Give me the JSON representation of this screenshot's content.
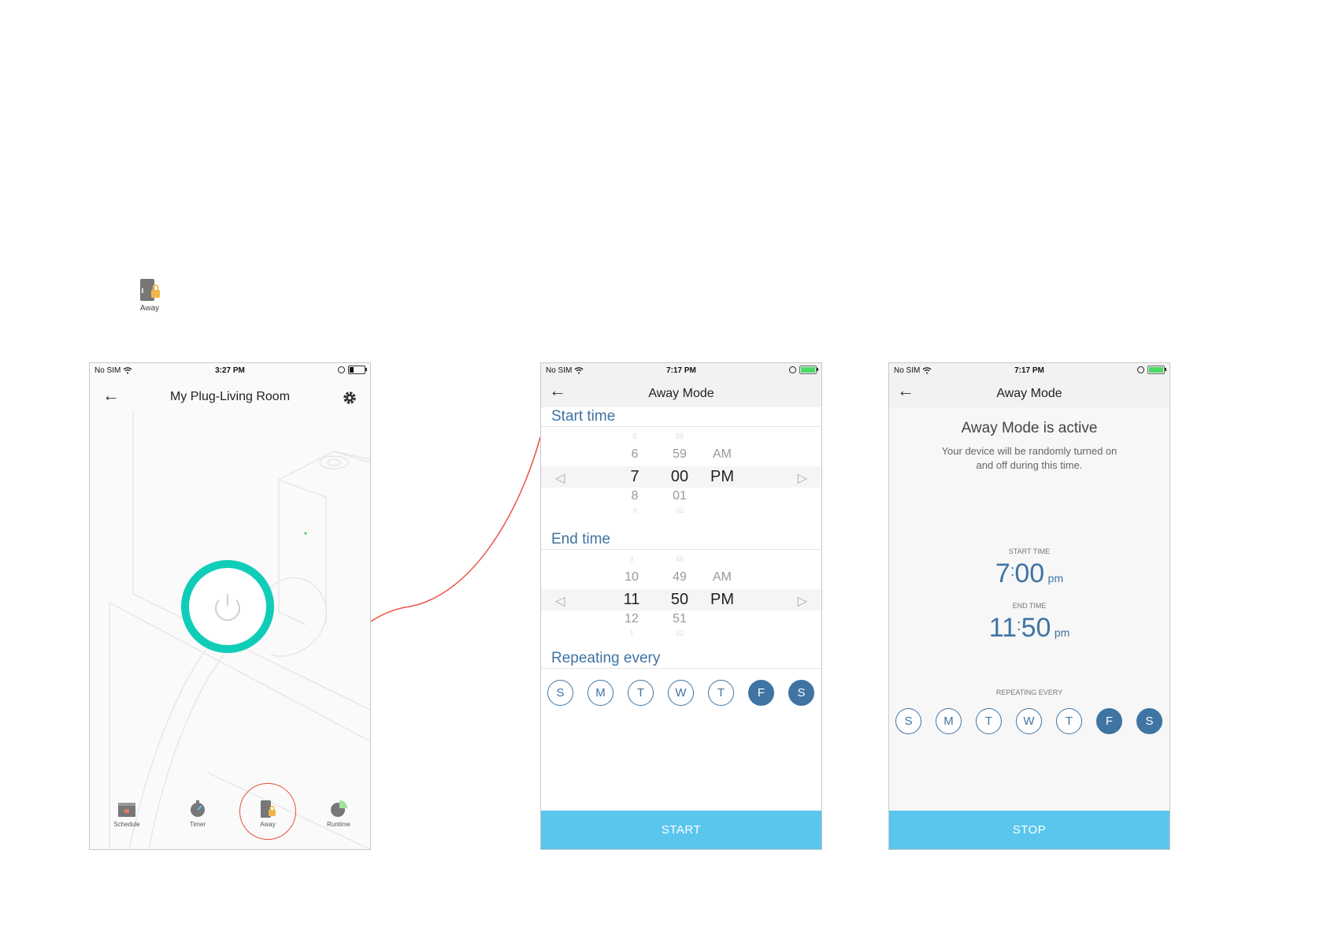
{
  "legend": {
    "label": "Away"
  },
  "phone1": {
    "status": {
      "carrier": "No SIM",
      "time": "3:27 PM"
    },
    "title": "My Plug-Living Room",
    "tabs": [
      {
        "label": "Schedule",
        "icon": "calendar-icon"
      },
      {
        "label": "Timer",
        "icon": "stopwatch-icon"
      },
      {
        "label": "Away",
        "icon": "away-lock-icon"
      },
      {
        "label": "Runtime",
        "icon": "pie-chart-icon"
      }
    ],
    "power_color": "#10cdb8"
  },
  "phone2": {
    "status": {
      "carrier": "No SIM",
      "time": "7:17 PM"
    },
    "title": "Away Mode",
    "start": {
      "label": "Start time",
      "hours": [
        "5",
        "6",
        "7",
        "8",
        "9"
      ],
      "minutes": [
        "58",
        "59",
        "00",
        "01",
        "02"
      ],
      "ampm": [
        "AM",
        "PM"
      ]
    },
    "end": {
      "label": "End time",
      "hours": [
        "9",
        "10",
        "11",
        "12",
        "1"
      ],
      "minutes": [
        "48",
        "49",
        "50",
        "51",
        "52"
      ],
      "ampm": [
        "AM",
        "PM"
      ]
    },
    "repeat_label": "Repeating every",
    "days": [
      "S",
      "M",
      "T",
      "W",
      "T",
      "F",
      "S"
    ],
    "button": "START"
  },
  "phone3": {
    "status": {
      "carrier": "No SIM",
      "time": "7:17 PM"
    },
    "title": "Away Mode",
    "active_title": "Away Mode is active",
    "desc_line1": "Your device will be randomly turned on",
    "desc_line2": "and off during this time.",
    "start_label": "START TIME",
    "start_hour": "7",
    "start_min": "00",
    "start_ampm": "pm",
    "end_label": "END TIME",
    "end_hour": "11",
    "end_min": "50",
    "end_ampm": "pm",
    "repeat_label": "REPEATING EVERY",
    "days": [
      "S",
      "M",
      "T",
      "W",
      "T",
      "F",
      "S"
    ],
    "button": "STOP"
  },
  "colors": {
    "accent": "#3f74a3",
    "button": "#5ac6ee",
    "callout": "#e8533f"
  }
}
